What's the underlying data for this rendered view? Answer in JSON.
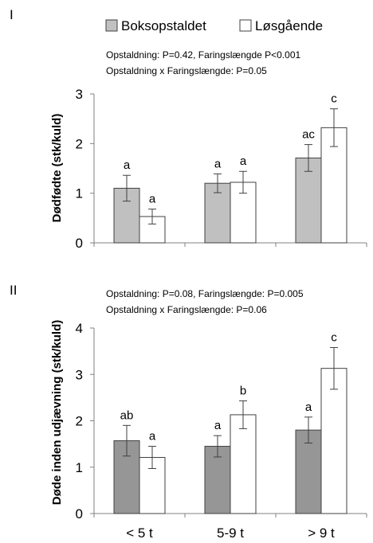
{
  "legend": {
    "items": [
      {
        "label": "Boksopstaldet",
        "swatch": "#c0c0c0"
      },
      {
        "label": "Løsgående",
        "swatch": "#ffffff"
      }
    ]
  },
  "colors": {
    "panel1_series1": "#c0c0c0",
    "panel2_series1": "#969696",
    "series2": "#ffffff",
    "outline": "#404040",
    "axis": "#808080"
  },
  "chart_data": [
    {
      "type": "bar",
      "panel_label": "I",
      "stats_lines": [
        "Opstaldning: P=0.42, Faringslængde P<0.001",
        "Opstaldning x Faringslængde: P=0.05"
      ],
      "ylabel": "Dødfødte (stk/kuld)",
      "ylim": [
        0,
        3
      ],
      "yticks": [
        "0",
        "1",
        "2",
        "3"
      ],
      "categories": [
        "< 5 t",
        "5-9 t",
        "> 9 t"
      ],
      "show_category_labels": false,
      "series": [
        {
          "name": "Boksopstaldet",
          "values": [
            1.1,
            1.2,
            1.71
          ],
          "errors": [
            0.26,
            0.19,
            0.27
          ],
          "letters": [
            "a",
            "a",
            "ac"
          ]
        },
        {
          "name": "Løsgående",
          "values": [
            0.53,
            1.22,
            2.32
          ],
          "errors": [
            0.15,
            0.22,
            0.38
          ],
          "letters": [
            "a",
            "a",
            "c"
          ]
        }
      ]
    },
    {
      "type": "bar",
      "panel_label": "II",
      "stats_lines": [
        "Opstaldning: P=0.08, Faringslængde: P=0.005",
        "Opstaldning x Faringslængde: P=0.06"
      ],
      "ylabel": "Døde inden udjævning  (stk/kuld)",
      "ylim": [
        0,
        4
      ],
      "yticks": [
        "0",
        "1",
        "2",
        "3",
        "4"
      ],
      "categories": [
        "< 5 t",
        "5-9 t",
        "> 9 t"
      ],
      "show_category_labels": true,
      "series": [
        {
          "name": "Boksopstaldet",
          "values": [
            1.57,
            1.45,
            1.8
          ],
          "errors": [
            0.33,
            0.23,
            0.28
          ],
          "letters": [
            "ab",
            "a",
            "a"
          ]
        },
        {
          "name": "Løsgående",
          "values": [
            1.21,
            2.13,
            3.13
          ],
          "errors": [
            0.24,
            0.3,
            0.45
          ],
          "letters": [
            "a",
            "b",
            "c"
          ]
        }
      ]
    }
  ]
}
